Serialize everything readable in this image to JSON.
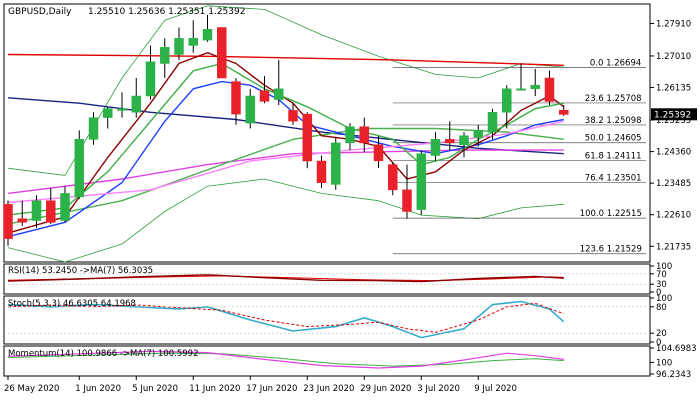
{
  "chart_data": {
    "type": "candlestick",
    "symbol_label": "GBPUSD,Daily",
    "ohlc_label": "1.25510 1.25636 1.25351 1.25392",
    "current_price": "1.25392",
    "y_ticks": [
      "1.27910",
      "1.27010",
      "1.26135",
      "1.25235",
      "1.24360",
      "1.23485",
      "1.22610",
      "1.21735"
    ],
    "x_labels": [
      "26 May 2020",
      "1 Jun 2020",
      "5 Jun 2020",
      "11 Jun 2020",
      "17 Jun 2020",
      "23 Jun 2020",
      "29 Jun 2020",
      "3 Jul 2020",
      "9 Jul 2020"
    ],
    "ylim": [
      1.213,
      1.2845
    ],
    "candles": [
      {
        "o": 1.229,
        "h": 1.23,
        "l": 1.2175,
        "c": 1.2195
      },
      {
        "o": 1.225,
        "h": 1.23,
        "l": 1.223,
        "c": 1.224
      },
      {
        "o": 1.2245,
        "h": 1.2315,
        "l": 1.2225,
        "c": 1.23
      },
      {
        "o": 1.23,
        "h": 1.2335,
        "l": 1.2235,
        "c": 1.224
      },
      {
        "o": 1.2245,
        "h": 1.234,
        "l": 1.224,
        "c": 1.232
      },
      {
        "o": 1.231,
        "h": 1.2495,
        "l": 1.2305,
        "c": 1.247
      },
      {
        "o": 1.247,
        "h": 1.2545,
        "l": 1.2455,
        "c": 1.253
      },
      {
        "o": 1.253,
        "h": 1.256,
        "l": 1.25,
        "c": 1.2555
      },
      {
        "o": 1.255,
        "h": 1.26,
        "l": 1.253,
        "c": 1.2555
      },
      {
        "o": 1.2545,
        "h": 1.264,
        "l": 1.253,
        "c": 1.259
      },
      {
        "o": 1.259,
        "h": 1.273,
        "l": 1.258,
        "c": 1.2685
      },
      {
        "o": 1.268,
        "h": 1.275,
        "l": 1.264,
        "c": 1.2725
      },
      {
        "o": 1.2705,
        "h": 1.278,
        "l": 1.269,
        "c": 1.275
      },
      {
        "o": 1.273,
        "h": 1.28,
        "l": 1.271,
        "c": 1.275
      },
      {
        "o": 1.2745,
        "h": 1.2815,
        "l": 1.274,
        "c": 1.2775
      },
      {
        "o": 1.278,
        "h": 1.278,
        "l": 1.264,
        "c": 1.264
      },
      {
        "o": 1.263,
        "h": 1.264,
        "l": 1.251,
        "c": 1.254
      },
      {
        "o": 1.2515,
        "h": 1.261,
        "l": 1.25,
        "c": 1.259
      },
      {
        "o": 1.2605,
        "h": 1.2645,
        "l": 1.257,
        "c": 1.2575
      },
      {
        "o": 1.258,
        "h": 1.269,
        "l": 1.2565,
        "c": 1.261
      },
      {
        "o": 1.255,
        "h": 1.257,
        "l": 1.251,
        "c": 1.252
      },
      {
        "o": 1.254,
        "h": 1.2545,
        "l": 1.239,
        "c": 1.241
      },
      {
        "o": 1.241,
        "h": 1.2425,
        "l": 1.2335,
        "c": 1.235
      },
      {
        "o": 1.2345,
        "h": 1.2475,
        "l": 1.233,
        "c": 1.246
      },
      {
        "o": 1.246,
        "h": 1.2515,
        "l": 1.244,
        "c": 1.2505
      },
      {
        "o": 1.2505,
        "h": 1.253,
        "l": 1.2435,
        "c": 1.246
      },
      {
        "o": 1.2455,
        "h": 1.248,
        "l": 1.239,
        "c": 1.241
      },
      {
        "o": 1.24,
        "h": 1.2405,
        "l": 1.2315,
        "c": 1.233
      },
      {
        "o": 1.233,
        "h": 1.24,
        "l": 1.225,
        "c": 1.227
      },
      {
        "o": 1.2275,
        "h": 1.244,
        "l": 1.226,
        "c": 1.243
      },
      {
        "o": 1.2425,
        "h": 1.249,
        "l": 1.241,
        "c": 1.247
      },
      {
        "o": 1.247,
        "h": 1.252,
        "l": 1.244,
        "c": 1.246
      },
      {
        "o": 1.2455,
        "h": 1.249,
        "l": 1.242,
        "c": 1.248
      },
      {
        "o": 1.2475,
        "h": 1.251,
        "l": 1.245,
        "c": 1.2495
      },
      {
        "o": 1.249,
        "h": 1.2555,
        "l": 1.247,
        "c": 1.2545
      },
      {
        "o": 1.2545,
        "h": 1.262,
        "l": 1.25,
        "c": 1.261
      },
      {
        "o": 1.261,
        "h": 1.268,
        "l": 1.2605,
        "c": 1.261
      },
      {
        "o": 1.261,
        "h": 1.2665,
        "l": 1.259,
        "c": 1.262
      },
      {
        "o": 1.264,
        "h": 1.266,
        "l": 1.2565,
        "c": 1.2575
      },
      {
        "o": 1.2551,
        "h": 1.2564,
        "l": 1.2535,
        "c": 1.2539
      }
    ],
    "fib_levels": [
      {
        "label": "0.0 1.26694",
        "price": 1.26694,
        "start": 27
      },
      {
        "label": "23.6 1.25708",
        "price": 1.25708,
        "start": 27
      },
      {
        "label": "38.2 1.25098",
        "price": 1.25098,
        "start": 27
      },
      {
        "label": "50.0 1.24605",
        "price": 1.24605,
        "start": 27
      },
      {
        "label": "61.8 1.24111",
        "price": 1.24111,
        "start": 27
      },
      {
        "label": "76.4 1.23501",
        "price": 1.23501,
        "start": 27
      },
      {
        "label": "100.0 1.22515",
        "price": 1.22515,
        "start": 27
      },
      {
        "label": "123.6 1.21529",
        "price": 1.21529,
        "start": 27
      }
    ],
    "ma_lines": [
      {
        "color": "#e00000",
        "points": [
          [
            0,
            1.2705
          ],
          [
            14,
            1.27
          ],
          [
            27,
            1.269
          ],
          [
            39,
            1.2675
          ]
        ]
      },
      {
        "color": "#1a237e",
        "points": [
          [
            0,
            1.2585
          ],
          [
            5,
            1.257
          ],
          [
            10,
            1.2545
          ],
          [
            16,
            1.2525
          ],
          [
            22,
            1.249
          ],
          [
            28,
            1.2465
          ],
          [
            33,
            1.2445
          ],
          [
            39,
            1.243
          ]
        ]
      },
      {
        "color": "#e040e0",
        "points": [
          [
            0,
            1.232
          ],
          [
            8,
            1.236
          ],
          [
            14,
            1.24
          ],
          [
            20,
            1.243
          ],
          [
            26,
            1.2435
          ],
          [
            32,
            1.244
          ],
          [
            39,
            1.244
          ]
        ]
      },
      {
        "color": "#4caf50",
        "points": [
          [
            0,
            1.2235
          ],
          [
            8,
            1.23
          ],
          [
            15,
            1.24
          ],
          [
            20,
            1.247
          ],
          [
            25,
            1.25
          ],
          [
            30,
            1.25
          ],
          [
            35,
            1.249
          ],
          [
            39,
            1.247
          ]
        ]
      },
      {
        "color": "#1e40ff",
        "points": [
          [
            0,
            1.22
          ],
          [
            4,
            1.224
          ],
          [
            8,
            1.235
          ],
          [
            11,
            1.252
          ],
          [
            13,
            1.261
          ],
          [
            15,
            1.263
          ],
          [
            17,
            1.262
          ],
          [
            19,
            1.258
          ],
          [
            21,
            1.251
          ],
          [
            24,
            1.248
          ],
          [
            27,
            1.245
          ],
          [
            30,
            1.243
          ],
          [
            33,
            1.2455
          ],
          [
            35,
            1.248
          ],
          [
            37,
            1.251
          ],
          [
            39,
            1.2525
          ]
        ]
      },
      {
        "color": "#8b0000",
        "points": [
          [
            0,
            1.221
          ],
          [
            4,
            1.2255
          ],
          [
            7,
            1.242
          ],
          [
            10,
            1.257
          ],
          [
            12,
            1.268
          ],
          [
            14,
            1.271
          ],
          [
            16,
            1.268
          ],
          [
            18,
            1.262
          ],
          [
            20,
            1.257
          ],
          [
            22,
            1.248
          ],
          [
            24,
            1.247
          ],
          [
            26,
            1.245
          ],
          [
            28,
            1.236
          ],
          [
            30,
            1.238
          ],
          [
            32,
            1.244
          ],
          [
            34,
            1.248
          ],
          [
            36,
            1.255
          ],
          [
            38,
            1.259
          ],
          [
            39,
            1.256
          ]
        ]
      },
      {
        "color": "#3cb044",
        "points": [
          [
            0,
            1.226
          ],
          [
            4,
            1.228
          ],
          [
            7,
            1.238
          ],
          [
            10,
            1.252
          ],
          [
            13,
            1.266
          ],
          [
            15,
            1.268
          ],
          [
            18,
            1.261
          ],
          [
            21,
            1.256
          ],
          [
            24,
            1.25
          ],
          [
            27,
            1.247
          ],
          [
            29,
            1.24
          ],
          [
            31,
            1.242
          ],
          [
            33,
            1.247
          ],
          [
            35,
            1.251
          ],
          [
            37,
            1.2555
          ],
          [
            39,
            1.257
          ]
        ]
      },
      {
        "color": "#ff80ff",
        "points": [
          [
            0,
            1.2295
          ],
          [
            10,
            1.233
          ],
          [
            17,
            1.241
          ],
          [
            24,
            1.244
          ],
          [
            30,
            1.246
          ],
          [
            35,
            1.2485
          ],
          [
            39,
            1.252
          ]
        ]
      }
    ],
    "bollinger_upper": [
      [
        0,
        1.239
      ],
      [
        4,
        1.237
      ],
      [
        8,
        1.264
      ],
      [
        11,
        1.28
      ],
      [
        14,
        1.284
      ],
      [
        18,
        1.283
      ],
      [
        22,
        1.276
      ],
      [
        26,
        1.27
      ],
      [
        30,
        1.265
      ],
      [
        33,
        1.264
      ],
      [
        36,
        1.268
      ],
      [
        39,
        1.267
      ]
    ],
    "bollinger_lower": [
      [
        0,
        1.217
      ],
      [
        4,
        1.213
      ],
      [
        8,
        1.218
      ],
      [
        11,
        1.227
      ],
      [
        14,
        1.234
      ],
      [
        18,
        1.236
      ],
      [
        22,
        1.232
      ],
      [
        26,
        1.23
      ],
      [
        29,
        1.226
      ],
      [
        33,
        1.225
      ],
      [
        36,
        1.228
      ],
      [
        39,
        1.229
      ]
    ],
    "rsi": {
      "label": "RSI(14) 53.2450 ->MA(7) 56.3035",
      "ticks": [
        "100",
        "70",
        "30",
        "0"
      ],
      "rsi_points": [
        [
          0,
          42
        ],
        [
          5,
          50
        ],
        [
          10,
          60
        ],
        [
          14,
          66
        ],
        [
          18,
          55
        ],
        [
          22,
          45
        ],
        [
          26,
          44
        ],
        [
          29,
          40
        ],
        [
          33,
          52
        ],
        [
          37,
          60
        ],
        [
          39,
          53
        ]
      ],
      "ma_points": [
        [
          0,
          45
        ],
        [
          6,
          52
        ],
        [
          11,
          58
        ],
        [
          15,
          62
        ],
        [
          20,
          55
        ],
        [
          25,
          47
        ],
        [
          30,
          44
        ],
        [
          34,
          50
        ],
        [
          38,
          58
        ],
        [
          39,
          56
        ]
      ]
    },
    "stoch": {
      "label": "Stoch(5,3,3) 46.6305 64.1968",
      "ticks": [
        "100",
        "80",
        "20",
        "0"
      ],
      "k_points": [
        [
          0,
          85
        ],
        [
          3,
          80
        ],
        [
          6,
          85
        ],
        [
          9,
          80
        ],
        [
          12,
          75
        ],
        [
          14,
          80
        ],
        [
          17,
          50
        ],
        [
          20,
          25
        ],
        [
          23,
          35
        ],
        [
          25,
          55
        ],
        [
          27,
          35
        ],
        [
          29,
          10
        ],
        [
          32,
          30
        ],
        [
          34,
          85
        ],
        [
          36,
          92
        ],
        [
          38,
          75
        ],
        [
          39,
          46
        ]
      ],
      "d_points": [
        [
          0,
          80
        ],
        [
          3,
          84
        ],
        [
          6,
          80
        ],
        [
          9,
          84
        ],
        [
          12,
          78
        ],
        [
          15,
          72
        ],
        [
          18,
          50
        ],
        [
          21,
          35
        ],
        [
          24,
          40
        ],
        [
          26,
          45
        ],
        [
          28,
          30
        ],
        [
          30,
          22
        ],
        [
          33,
          50
        ],
        [
          35,
          80
        ],
        [
          37,
          88
        ],
        [
          39,
          64
        ]
      ]
    },
    "momentum": {
      "label": "Momentum(14) 100.9866 ->MA(7) 100.5992",
      "ticks": [
        "104.6983",
        "100",
        "96.2343"
      ],
      "mom_points": [
        [
          0,
          102.0
        ],
        [
          5,
          102.8
        ],
        [
          10,
          103.6
        ],
        [
          14,
          103.2
        ],
        [
          18,
          101.0
        ],
        [
          22,
          99.0
        ],
        [
          26,
          98.2
        ],
        [
          29,
          98.8
        ],
        [
          32,
          100.8
        ],
        [
          35,
          103.0
        ],
        [
          37,
          102.2
        ],
        [
          39,
          101.0
        ]
      ],
      "ma_points": [
        [
          0,
          101.6
        ],
        [
          6,
          102.4
        ],
        [
          11,
          103.0
        ],
        [
          15,
          102.8
        ],
        [
          19,
          101.4
        ],
        [
          23,
          99.6
        ],
        [
          27,
          98.8
        ],
        [
          31,
          99.4
        ],
        [
          34,
          100.6
        ],
        [
          37,
          101.2
        ],
        [
          39,
          100.6
        ]
      ]
    }
  }
}
